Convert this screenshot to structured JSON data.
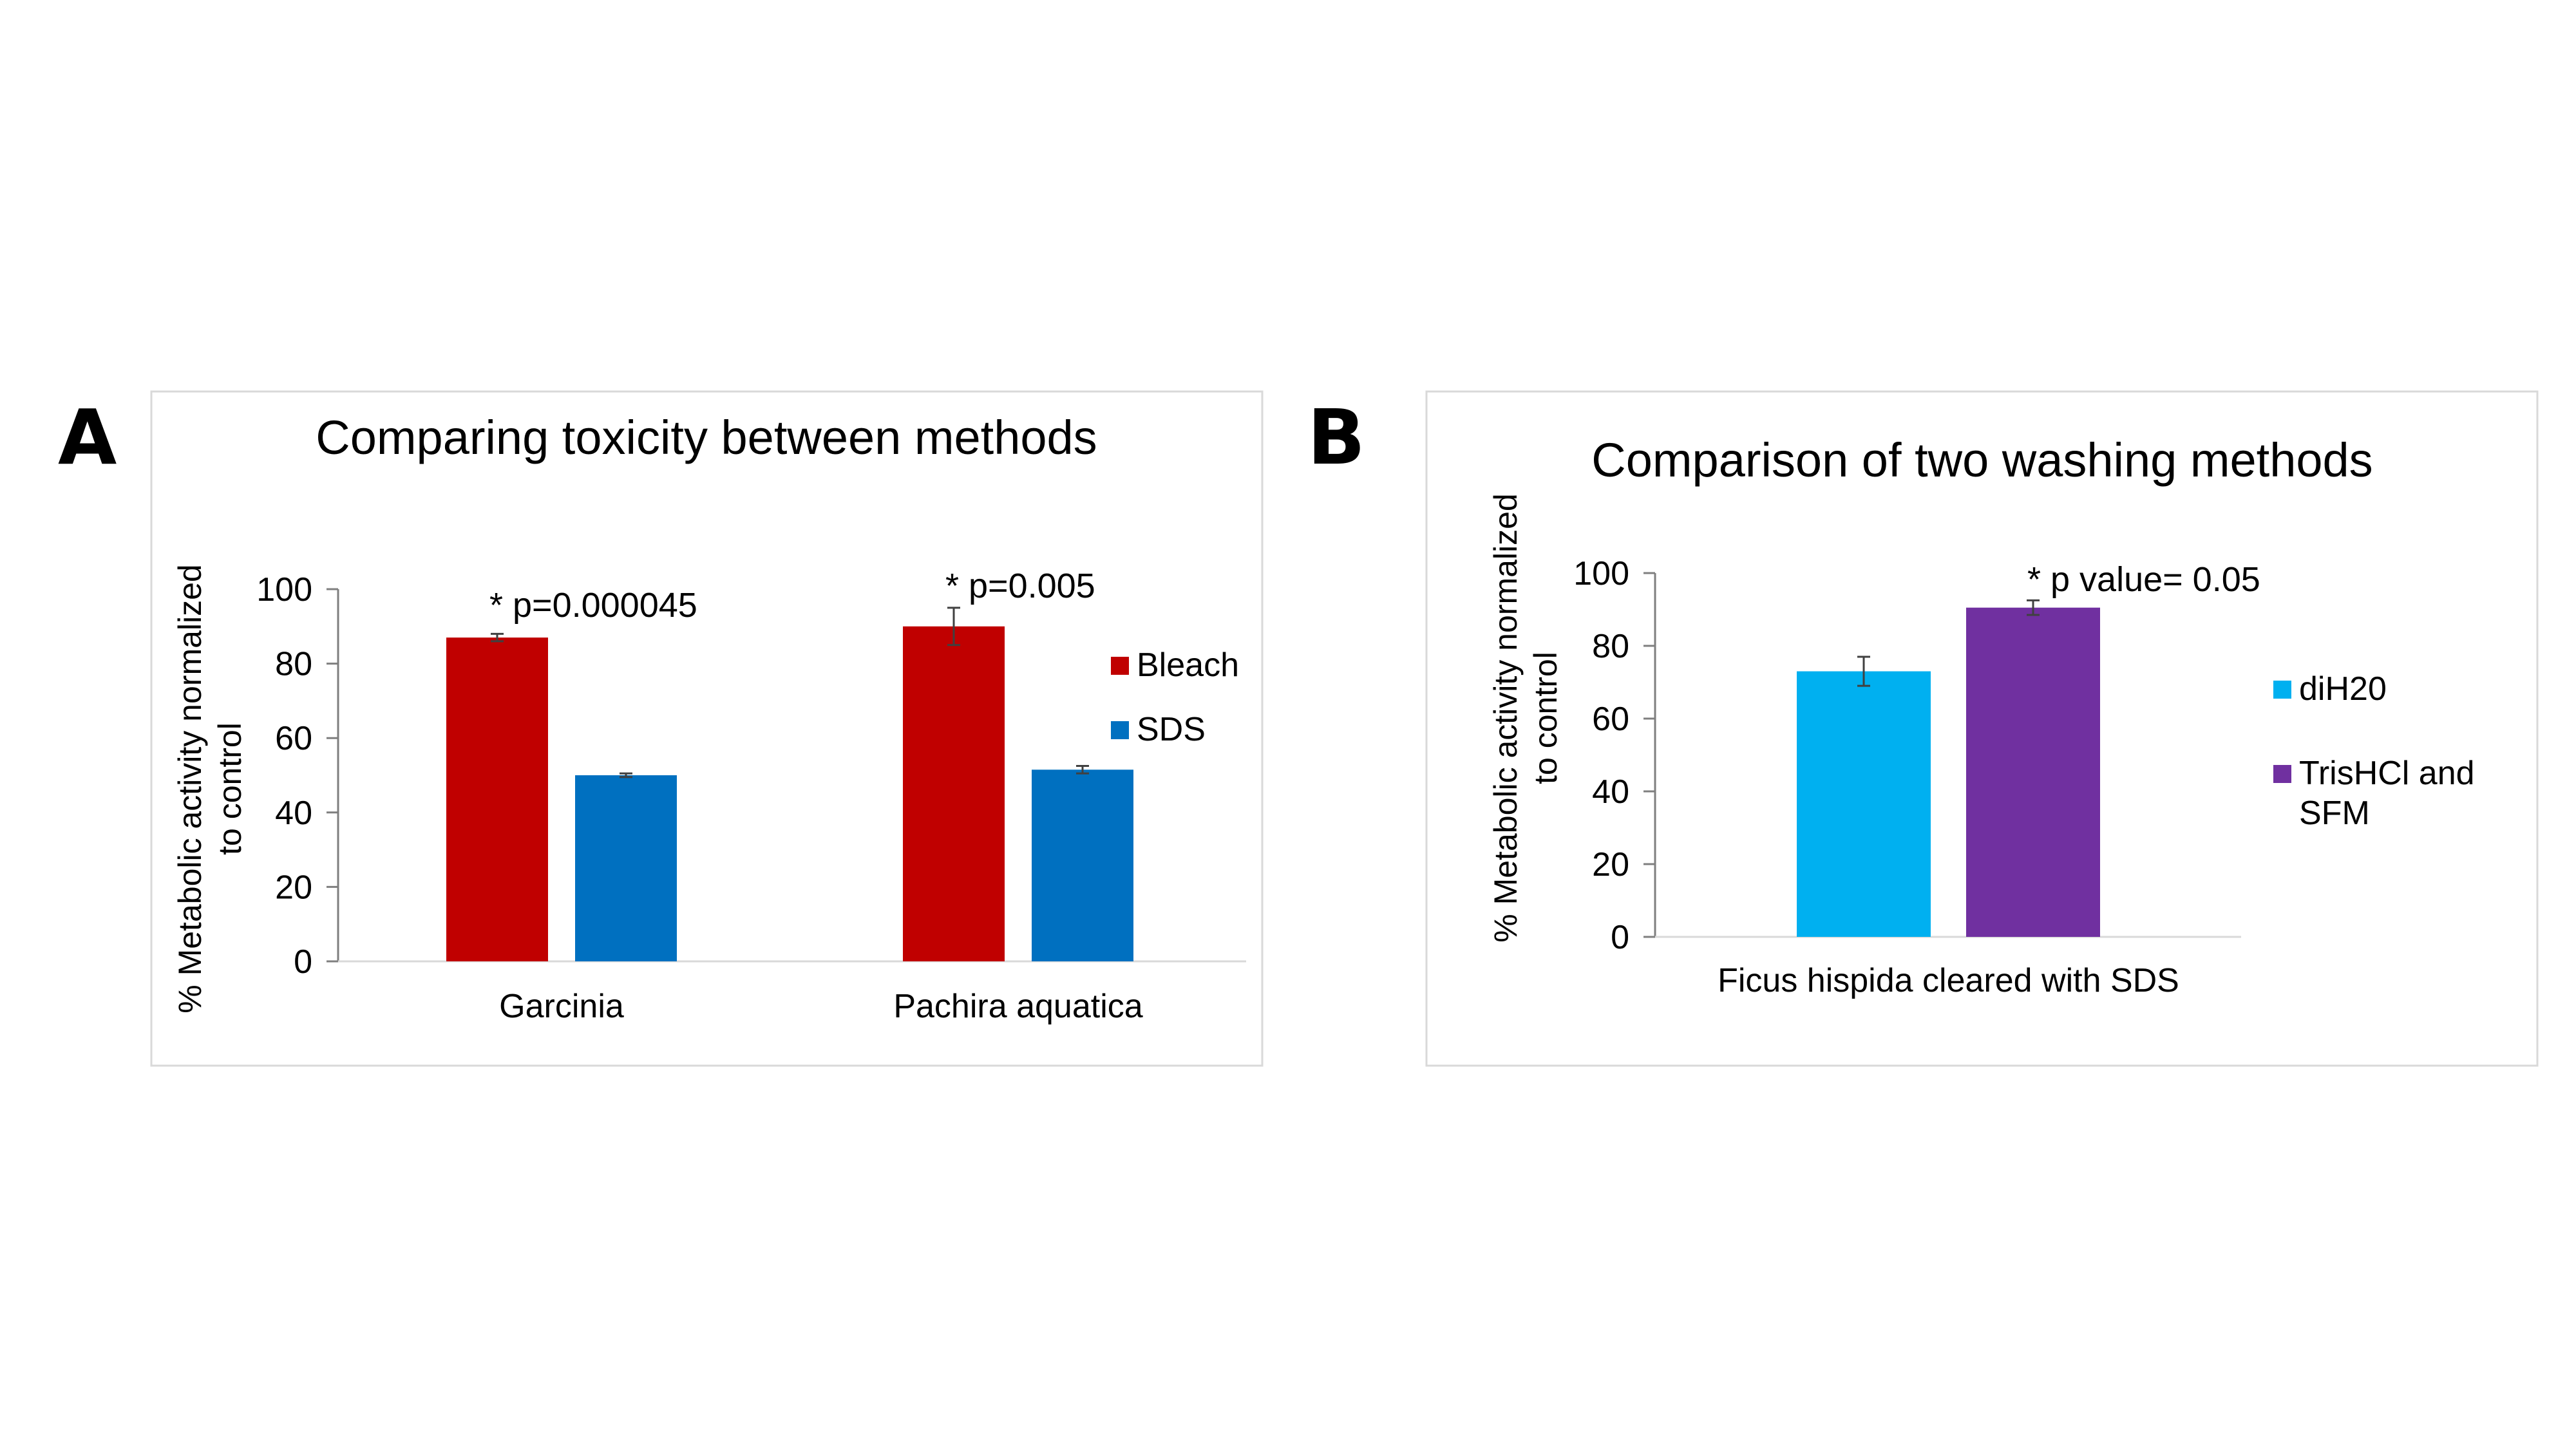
{
  "panels": [
    {
      "letter": "A"
    },
    {
      "letter": "B"
    }
  ],
  "chart_data": [
    {
      "type": "bar",
      "title": "Comparing toxicity between methods",
      "ylabel_lines": [
        "% Metabolic activity normalized",
        "to control"
      ],
      "xlabel": "",
      "ylim": [
        0,
        100
      ],
      "yticks": [
        0,
        20,
        40,
        60,
        80,
        100
      ],
      "categories": [
        "Garcinia",
        "Pachira aquatica"
      ],
      "series": [
        {
          "name": "Bleach",
          "color": "#C00000",
          "values": [
            87,
            90
          ],
          "errors": [
            1,
            5
          ]
        },
        {
          "name": "SDS",
          "color": "#0070C0",
          "values": [
            50,
            51.5
          ],
          "errors": [
            0.5,
            1
          ]
        }
      ],
      "annotations": [
        {
          "text": "* p=0.000045",
          "category": 0
        },
        {
          "text": "* p=0.005",
          "category": 1
        }
      ],
      "legend": "right",
      "grid": false
    },
    {
      "type": "bar",
      "title": "Comparison of two washing methods",
      "ylabel_lines": [
        "% Metabolic activity normalized",
        "to control"
      ],
      "xlabel": "",
      "ylim": [
        0,
        100
      ],
      "yticks": [
        0,
        20,
        40,
        60,
        80,
        100
      ],
      "categories": [
        "Ficus hispida cleared with SDS"
      ],
      "series": [
        {
          "name_lines": [
            "diH20"
          ],
          "color": "#00B0F0",
          "values": [
            73
          ],
          "errors": [
            4
          ]
        },
        {
          "name_lines": [
            "TrisHCl and",
            "SFM"
          ],
          "color": "#7030A0",
          "values": [
            90.5
          ],
          "errors": [
            2
          ]
        }
      ],
      "annotations": [
        {
          "text": "* p value= 0.05",
          "category": 0
        }
      ],
      "legend": "right",
      "grid": false
    }
  ]
}
